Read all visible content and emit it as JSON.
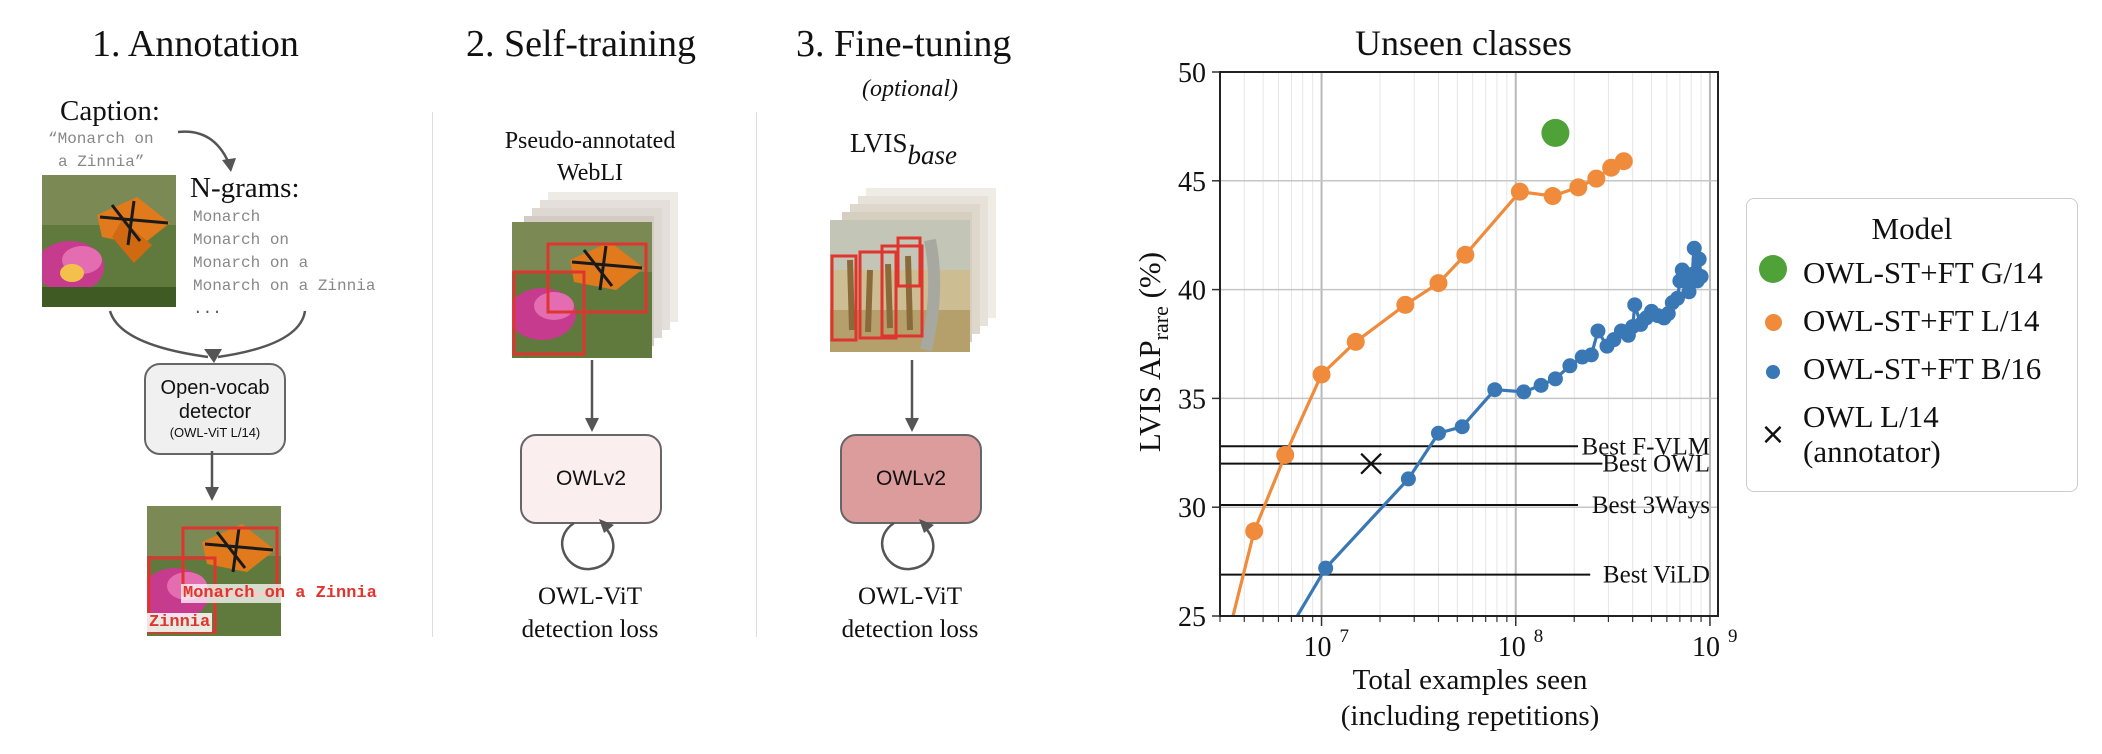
{
  "steps": {
    "annotation": {
      "title": "1. Annotation",
      "caption_label": "Caption:",
      "caption_text_1": "“Monarch on",
      "caption_text_2": "a Zinnia”",
      "ngrams_label": "N-grams:",
      "ngrams": [
        "Monarch",
        "Monarch on",
        "Monarch on a",
        "Monarch on a Zinnia",
        "..."
      ],
      "detector_line1": "Open-vocab",
      "detector_line2": "detector",
      "detector_line3": "(OWL-ViT L/14)",
      "box_label_1": "Monarch on a Zinnia",
      "box_label_2": "Zinnia"
    },
    "self_training": {
      "title": "2. Self-training",
      "data_line1": "Pseudo-annotated",
      "data_line2": "WebLI",
      "model": "OWLv2",
      "loss_line1": "OWL-ViT",
      "loss_line2": "detection loss"
    },
    "fine_tuning": {
      "title": "3. Fine-tuning",
      "subtitle": "(optional)",
      "data_main": "LVIS",
      "data_sub": "base",
      "model": "OWLv2",
      "loss_line1": "OWL-ViT",
      "loss_line2": "detection loss"
    }
  },
  "colors": {
    "orange": "#ef8b3b",
    "blue": "#3a78b5",
    "green": "#4ea238",
    "detection_box": "#e0342e",
    "owlv2_light": "#fbeeee",
    "owlv2_dark": "#dc9c9c"
  },
  "chart_data": {
    "type": "line",
    "title": "Unseen classes",
    "xlabel_line1": "Total examples seen",
    "xlabel_line2": "(including repetitions)",
    "ylabel_main": "LVIS AP",
    "ylabel_sub": "rare",
    "ylabel_unit": " (%)",
    "x_scale": "log",
    "xlim": [
      3000000,
      1100000000
    ],
    "ylim": [
      25,
      50
    ],
    "yticks": [
      25,
      30,
      35,
      40,
      45,
      50
    ],
    "xticks": [
      {
        "value": 10000000,
        "base": "10",
        "exp": "7"
      },
      {
        "value": 100000000,
        "base": "10",
        "exp": "8"
      },
      {
        "value": 1000000000,
        "base": "10",
        "exp": "9"
      }
    ],
    "grid": true,
    "reference_lines": [
      {
        "label": "Best F-VLM",
        "y": 32.8
      },
      {
        "label": "Best OWL",
        "y": 32.0
      },
      {
        "label": "Best 3Ways",
        "y": 30.1
      },
      {
        "label": "Best ViLD",
        "y": 26.9
      }
    ],
    "legend_title": "Model",
    "legend_position": "right",
    "series": [
      {
        "name": "OWL-ST+FT G/14",
        "color": "#4ea238",
        "marker": "large-circle",
        "points": [
          [
            160000000,
            47.2
          ]
        ]
      },
      {
        "name": "OWL-ST+FT L/14",
        "color": "#ef8b3b",
        "marker": "circle",
        "points": [
          [
            3500000,
            25.0
          ],
          [
            4500000,
            28.9
          ],
          [
            6500000,
            32.4
          ],
          [
            10000000,
            36.1
          ],
          [
            15000000,
            37.6
          ],
          [
            27000000,
            39.3
          ],
          [
            40000000,
            40.3
          ],
          [
            55000000,
            41.6
          ],
          [
            105000000,
            44.5
          ],
          [
            155000000,
            44.3
          ],
          [
            210000000,
            44.7
          ],
          [
            260000000,
            45.1
          ],
          [
            310000000,
            45.6
          ],
          [
            360000000,
            45.9
          ]
        ]
      },
      {
        "name": "OWL-ST+FT B/16",
        "color": "#3a78b5",
        "marker": "circle",
        "points": [
          [
            7500000,
            25.0
          ],
          [
            10500000,
            27.2
          ],
          [
            28000000,
            31.3
          ],
          [
            40000000,
            33.4
          ],
          [
            53000000,
            33.7
          ],
          [
            78000000,
            35.4
          ],
          [
            110000000,
            35.3
          ],
          [
            135000000,
            35.6
          ],
          [
            160000000,
            35.9
          ],
          [
            190000000,
            36.5
          ],
          [
            220000000,
            36.9
          ],
          [
            245000000,
            37.0
          ],
          [
            265000000,
            38.1
          ],
          [
            295000000,
            37.4
          ],
          [
            320000000,
            37.7
          ],
          [
            350000000,
            38.1
          ],
          [
            380000000,
            37.9
          ],
          [
            400000000,
            38.3
          ],
          [
            410000000,
            39.3
          ],
          [
            440000000,
            38.4
          ],
          [
            470000000,
            38.7
          ],
          [
            500000000,
            39.0
          ],
          [
            540000000,
            38.8
          ],
          [
            580000000,
            38.7
          ],
          [
            610000000,
            38.9
          ],
          [
            640000000,
            39.4
          ],
          [
            680000000,
            39.6
          ],
          [
            700000000,
            40.4
          ],
          [
            720000000,
            40.9
          ],
          [
            750000000,
            40.6
          ],
          [
            780000000,
            39.9
          ],
          [
            810000000,
            40.7
          ],
          [
            830000000,
            41.9
          ],
          [
            860000000,
            40.4
          ],
          [
            880000000,
            41.4
          ],
          [
            900000000,
            40.6
          ]
        ]
      },
      {
        "name": "OWL L/14",
        "name_line2": "(annotator)",
        "color": "#111111",
        "marker": "x",
        "points": [
          [
            18000000,
            32.0
          ]
        ]
      }
    ]
  }
}
